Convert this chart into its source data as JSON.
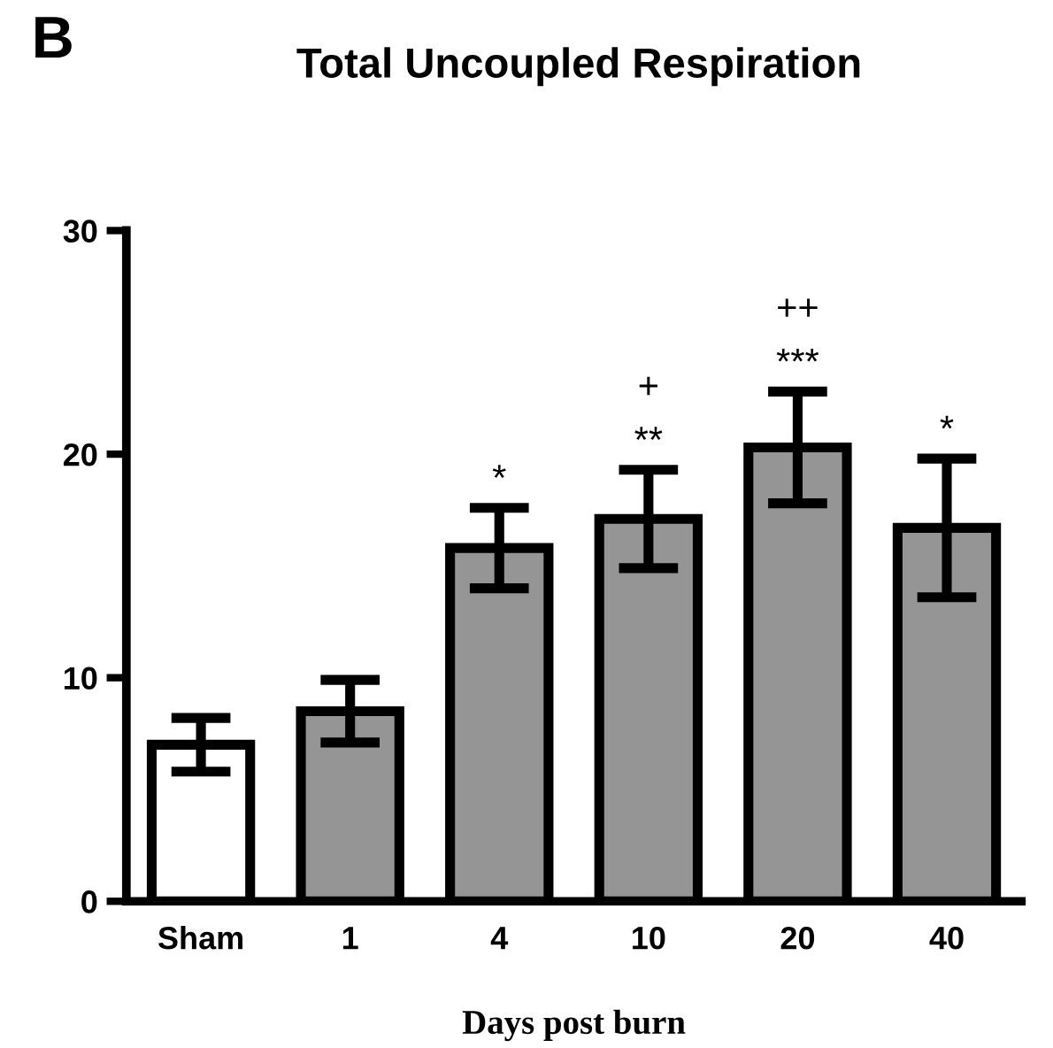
{
  "chart_data": {
    "type": "bar",
    "title": "Total Uncoupled Respiration",
    "xlabel": "Days post burn",
    "categories": [
      "Sham",
      "1",
      "4",
      "10",
      "20",
      "40"
    ],
    "values": [
      7.0,
      8.5,
      15.8,
      17.1,
      20.3,
      16.7
    ],
    "errors": [
      1.2,
      1.4,
      1.8,
      2.2,
      2.5,
      3.1
    ],
    "colors": [
      "#ffffff",
      "#959595",
      "#959595",
      "#959595",
      "#959595",
      "#959595"
    ],
    "ylim": [
      0,
      30
    ],
    "yticks": [
      0,
      10,
      20,
      30
    ],
    "grid": false,
    "legend": false,
    "annotations": [
      "B",
      "*",
      "**",
      "+",
      "***",
      "++",
      "*"
    ]
  }
}
